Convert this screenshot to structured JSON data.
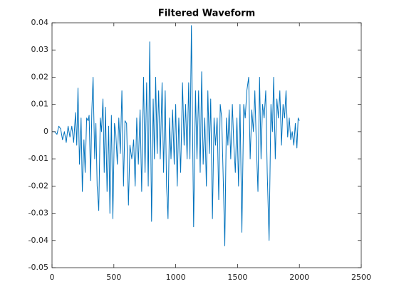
{
  "chart_data": {
    "type": "line",
    "title": "Filtered Waveform",
    "color": "#0072bd",
    "xlim": [
      0,
      2500
    ],
    "xticks": [
      0,
      500,
      1000,
      1500,
      2000,
      2500
    ],
    "ylim": [
      -0.05,
      0.04
    ],
    "yticks": [
      -0.05,
      -0.04,
      -0.03,
      -0.02,
      -0.01,
      0,
      0.01,
      0.02,
      0.03,
      0.04
    ],
    "x": [
      0,
      20,
      40,
      55,
      70,
      85,
      100,
      115,
      130,
      145,
      160,
      175,
      190,
      200,
      210,
      222,
      235,
      245,
      258,
      268,
      280,
      292,
      300,
      312,
      322,
      332,
      345,
      355,
      365,
      378,
      390,
      400,
      412,
      422,
      432,
      445,
      458,
      468,
      480,
      492,
      505,
      515,
      528,
      540,
      552,
      565,
      578,
      590,
      603,
      618,
      630,
      645,
      660,
      672,
      685,
      698,
      712,
      725,
      740,
      752,
      765,
      778,
      790,
      805,
      818,
      828,
      838,
      850,
      862,
      875,
      890,
      902,
      915,
      926,
      938,
      950,
      962,
      975,
      988,
      1000,
      1012,
      1025,
      1040,
      1055,
      1068,
      1080,
      1092,
      1105,
      1115,
      1127,
      1145,
      1160,
      1172,
      1185,
      1198,
      1210,
      1222,
      1235,
      1248,
      1260,
      1272,
      1283,
      1297,
      1310,
      1322,
      1335,
      1348,
      1360,
      1372,
      1383,
      1397,
      1410,
      1422,
      1432,
      1445,
      1458,
      1470,
      1482,
      1495,
      1508,
      1520,
      1535,
      1550,
      1562,
      1575,
      1590,
      1602,
      1615,
      1628,
      1640,
      1652,
      1665,
      1678,
      1690,
      1702,
      1715,
      1728,
      1740,
      1755,
      1770,
      1782,
      1792,
      1805,
      1818,
      1830,
      1842,
      1855,
      1868,
      1880,
      1892,
      1905,
      1918,
      1930,
      1942,
      1955,
      1967,
      1980,
      1990,
      2000
    ],
    "values": [
      0,
      0,
      -0.001,
      0.002,
      0.001,
      -0.003,
      0,
      -0.004,
      0.002,
      -0.002,
      0.002,
      -0.004,
      0.007,
      -0.005,
      0.016,
      -0.012,
      0.005,
      -0.022,
      -0.003,
      -0.015,
      0.005,
      0.004,
      0.006,
      -0.018,
      0.008,
      0.02,
      -0.01,
      0.003,
      -0.02,
      -0.029,
      0.005,
      0,
      0.012,
      -0.015,
      0.009,
      -0.022,
      0.002,
      -0.03,
      0.006,
      -0.032,
      0.003,
      0,
      -0.012,
      0.005,
      -0.008,
      0.015,
      -0.02,
      0.004,
      0.003,
      -0.027,
      -0.005,
      -0.01,
      -0.003,
      -0.02,
      0.005,
      -0.012,
      0.008,
      -0.022,
      0.02,
      -0.015,
      0.018,
      -0.02,
      0.033,
      -0.033,
      0.012,
      -0.01,
      0.02,
      -0.008,
      0.015,
      -0.01,
      0.018,
      -0.015,
      0.015,
      -0.02,
      -0.032,
      0.005,
      -0.01,
      0.008,
      -0.012,
      0.01,
      -0.02,
      0.005,
      -0.015,
      0.018,
      -0.005,
      0.01,
      -0.01,
      0.018,
      -0.01,
      0.039,
      -0.035,
      0.015,
      -0.01,
      0.015,
      -0.015,
      0.022,
      -0.012,
      0.005,
      -0.02,
      0.015,
      -0.008,
      0.012,
      -0.032,
      0.005,
      -0.005,
      0.005,
      -0.025,
      0.01,
      0.005,
      -0.015,
      -0.042,
      0.005,
      -0.005,
      0.008,
      -0.01,
      0.01,
      -0.005,
      -0.015,
      0.005,
      -0.02,
      0.01,
      -0.037,
      0.01,
      0.005,
      0.015,
      0.02,
      -0.01,
      0.008,
      0,
      0.015,
      -0.005,
      -0.022,
      0.02,
      -0.01,
      0.01,
      0.005,
      0.015,
      -0.015,
      -0.04,
      0.01,
      0,
      0.02,
      -0.01,
      0.012,
      0.005,
      0.015,
      -0.005,
      0.01,
      0.005,
      0.015,
      -0.002,
      0.005,
      -0.003,
      0,
      -0.005,
      0.003,
      -0.006,
      0.005,
      0.004
    ]
  }
}
